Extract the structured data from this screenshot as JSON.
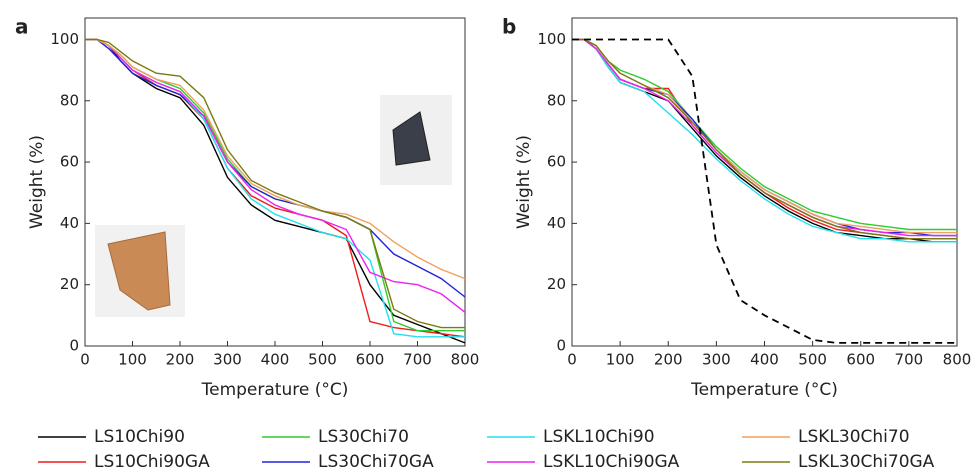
{
  "chart_data": [
    {
      "type": "line",
      "label": "a",
      "xlabel": "Temperature (°C)",
      "ylabel": "Weight (%)",
      "x": [
        0,
        25,
        50,
        75,
        100,
        150,
        200,
        250,
        300,
        350,
        400,
        450,
        500,
        550,
        600,
        650,
        700,
        750,
        800
      ],
      "xlim": [
        0,
        800
      ],
      "xticks": [
        0,
        100,
        200,
        300,
        400,
        500,
        600,
        700,
        800
      ],
      "ylim": [
        0,
        107
      ],
      "yticks": [
        0,
        20,
        40,
        60,
        80,
        100
      ],
      "series": [
        {
          "name": "LS10Chi90",
          "color": "#000000",
          "values": [
            100,
            100,
            98,
            93,
            89,
            84,
            81,
            72,
            55,
            46,
            41,
            39,
            37,
            35,
            20,
            10,
            7,
            4,
            1
          ]
        },
        {
          "name": "LS10Chi90GA",
          "color": "#ee1c1c",
          "values": [
            100,
            100,
            98,
            94,
            90,
            85,
            82,
            74,
            58,
            49,
            45,
            43,
            41,
            36,
            8,
            6,
            5,
            4,
            3
          ]
        },
        {
          "name": "LS30Chi70",
          "color": "#2fcc2f",
          "values": [
            100,
            100,
            98,
            95,
            91,
            87,
            84,
            76,
            61,
            52,
            48,
            46,
            44,
            42,
            38,
            8,
            5,
            5,
            5
          ]
        },
        {
          "name": "LS30Chi70GA",
          "color": "#2222dd",
          "values": [
            100,
            100,
            97,
            93,
            89,
            85,
            82,
            75,
            60,
            52,
            48,
            46,
            44,
            42,
            38,
            30,
            26,
            22,
            16
          ]
        },
        {
          "name": "LSKL10Chi90",
          "color": "#22e0ee",
          "values": [
            100,
            100,
            98,
            94,
            90,
            86,
            83,
            74,
            58,
            48,
            43,
            40,
            37,
            35,
            28,
            4,
            3,
            3,
            3
          ]
        },
        {
          "name": "LSKL10Chi90GA",
          "color": "#ee22ee",
          "values": [
            100,
            100,
            98,
            94,
            90,
            86,
            83,
            75,
            60,
            51,
            46,
            43,
            41,
            38,
            24,
            21,
            20,
            17,
            11
          ]
        },
        {
          "name": "LSKL30Chi70",
          "color": "#f0a060",
          "values": [
            100,
            100,
            98,
            95,
            91,
            87,
            85,
            77,
            62,
            53,
            49,
            46,
            44,
            43,
            40,
            34,
            29,
            25,
            22
          ]
        },
        {
          "name": "LSKL30Chi70GA",
          "color": "#7a7a10",
          "values": [
            100,
            100,
            99,
            96,
            93,
            89,
            88,
            81,
            64,
            54,
            50,
            47,
            44,
            42,
            38,
            12,
            8,
            6,
            6
          ]
        }
      ]
    },
    {
      "type": "line",
      "label": "b",
      "xlabel": "Temperature (°C)",
      "ylabel": "Weight (%)",
      "x": [
        0,
        25,
        50,
        75,
        100,
        150,
        200,
        250,
        300,
        350,
        400,
        450,
        500,
        550,
        600,
        650,
        700,
        750,
        800
      ],
      "xlim": [
        0,
        800
      ],
      "xticks": [
        0,
        100,
        200,
        300,
        400,
        500,
        600,
        700,
        800
      ],
      "ylim": [
        0,
        107
      ],
      "yticks": [
        0,
        20,
        40,
        60,
        80,
        100
      ],
      "series": [
        {
          "color": "#000000",
          "values": [
            100,
            100,
            97,
            91,
            86,
            83,
            80,
            71,
            62,
            55,
            49,
            44,
            40,
            37,
            36,
            35,
            35,
            34,
            34
          ]
        },
        {
          "color": "#ee1c1c",
          "values": [
            100,
            100,
            97,
            92,
            87,
            84,
            84,
            72,
            63,
            56,
            50,
            45,
            41,
            38,
            37,
            36,
            35,
            35,
            35
          ]
        },
        {
          "color": "#2fcc2f",
          "values": [
            100,
            100,
            98,
            93,
            90,
            87,
            83,
            74,
            65,
            58,
            52,
            48,
            44,
            42,
            40,
            39,
            38,
            38,
            38
          ]
        },
        {
          "color": "#2222dd",
          "values": [
            100,
            100,
            97,
            92,
            87,
            84,
            82,
            74,
            64,
            57,
            51,
            47,
            43,
            40,
            38,
            37,
            37,
            36,
            36
          ]
        },
        {
          "color": "#22e0ee",
          "values": [
            100,
            100,
            97,
            91,
            86,
            83,
            76,
            69,
            61,
            54,
            48,
            43,
            39,
            37,
            35,
            35,
            34,
            34,
            34
          ]
        },
        {
          "color": "#ee22ee",
          "values": [
            100,
            100,
            97,
            92,
            87,
            84,
            80,
            72,
            63,
            56,
            50,
            46,
            42,
            39,
            38,
            37,
            36,
            36,
            36
          ]
        },
        {
          "color": "#f0a060",
          "values": [
            100,
            100,
            98,
            93,
            89,
            85,
            82,
            73,
            64,
            57,
            51,
            47,
            43,
            40,
            39,
            38,
            37,
            37,
            37
          ]
        },
        {
          "color": "#7a7a10",
          "values": [
            100,
            100,
            98,
            93,
            89,
            85,
            81,
            73,
            64,
            56,
            50,
            46,
            42,
            39,
            37,
            36,
            35,
            35,
            35
          ]
        },
        {
          "color": "#000000",
          "linestyle": "dashed",
          "values": [
            100,
            100,
            100,
            100,
            100,
            100,
            100,
            88,
            33,
            15,
            10,
            6,
            2,
            1,
            1,
            1,
            1,
            1,
            1
          ]
        }
      ]
    }
  ]
}
